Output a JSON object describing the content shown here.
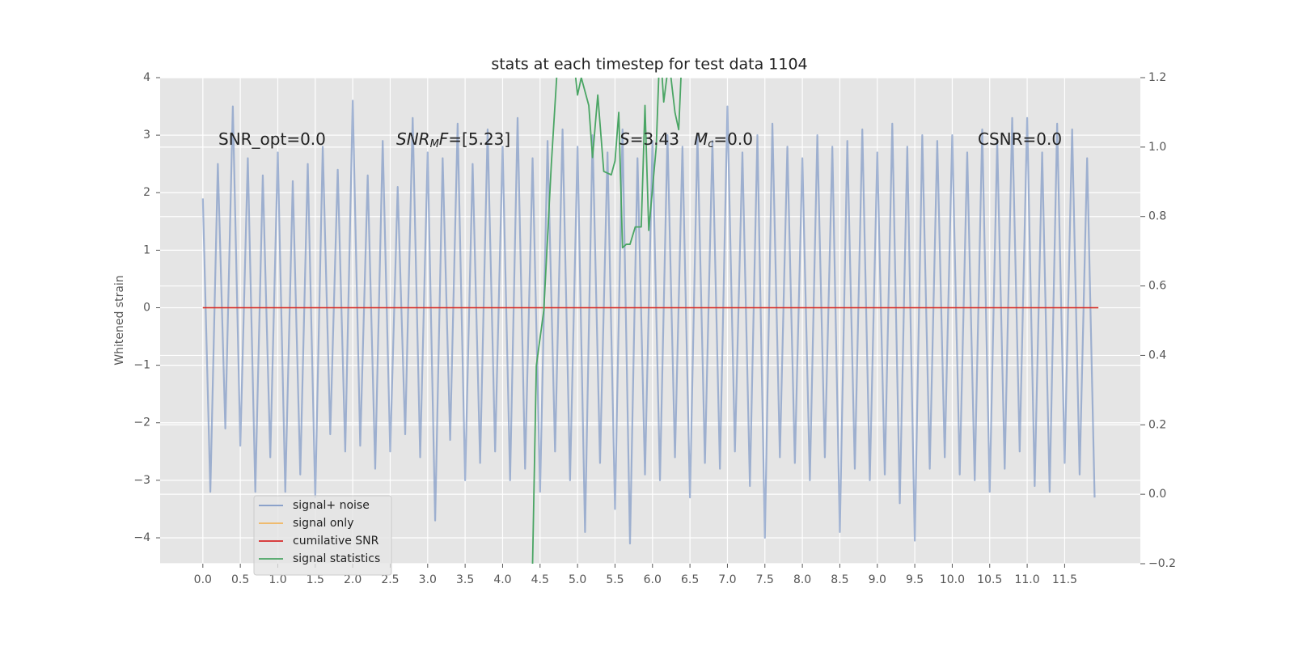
{
  "chart_data": {
    "type": "line",
    "title": "stats at each timestep for test data 1104",
    "ylabel": "Whitened strain",
    "xlim": [
      -0.57,
      12.51
    ],
    "ylim": [
      -4.45,
      4.0
    ],
    "y2lim": [
      -0.2,
      1.2
    ],
    "grid": true,
    "legend": "lower left",
    "xticks": [
      {
        "value": 0,
        "label": "0.0"
      },
      {
        "value": 0.5,
        "label": "0.5"
      },
      {
        "value": 1,
        "label": "1.0"
      },
      {
        "value": 1.5,
        "label": "1.5"
      },
      {
        "value": 2,
        "label": "2.0"
      },
      {
        "value": 2.5,
        "label": "2.5"
      },
      {
        "value": 3,
        "label": "3.0"
      },
      {
        "value": 3.5,
        "label": "3.5"
      },
      {
        "value": 4,
        "label": "4.0"
      },
      {
        "value": 4.5,
        "label": "4.5"
      },
      {
        "value": 5,
        "label": "5.0"
      },
      {
        "value": 5.5,
        "label": "5.5"
      },
      {
        "value": 6,
        "label": "6.0"
      },
      {
        "value": 6.5,
        "label": "6.5"
      },
      {
        "value": 7,
        "label": "7.0"
      },
      {
        "value": 7.5,
        "label": "7.5"
      },
      {
        "value": 8,
        "label": "8.0"
      },
      {
        "value": 8.5,
        "label": "8.5"
      },
      {
        "value": 9,
        "label": "9.0"
      },
      {
        "value": 9.5,
        "label": "9.5"
      },
      {
        "value": 10,
        "label": "10.0"
      },
      {
        "value": 10.5,
        "label": "10.5"
      },
      {
        "value": 11,
        "label": "11.0"
      },
      {
        "value": 11.5,
        "label": "11.5"
      }
    ],
    "yticks": [
      {
        "value": -4,
        "label": "−4"
      },
      {
        "value": -3,
        "label": "−3"
      },
      {
        "value": -2,
        "label": "−2"
      },
      {
        "value": -1,
        "label": "−1"
      },
      0,
      1,
      2,
      3,
      4
    ],
    "y2ticks": [
      {
        "value": -0.2,
        "label": "−0.2"
      },
      {
        "value": 0,
        "label": "0.0"
      },
      {
        "value": 0.2,
        "label": "0.2"
      },
      {
        "value": 0.4,
        "label": "0.4"
      },
      {
        "value": 0.6,
        "label": "0.6"
      },
      {
        "value": 0.8,
        "label": "0.8"
      },
      {
        "value": 1.0,
        "label": "1.0"
      },
      {
        "value": 1.2,
        "label": "1.2"
      }
    ],
    "annotations": [
      [
        {
          "text": "SNR_opt=0.0"
        }
      ],
      [
        {
          "text": "SNR",
          "italic": true
        },
        {
          "text": "M",
          "italic": true,
          "sub": true
        },
        {
          "text": "F",
          "italic": true
        },
        {
          "text": "=[5.23]"
        }
      ],
      [
        {
          "text": "S",
          "italic": true
        },
        {
          "text": "=3.43"
        }
      ],
      [
        {
          "text": "M",
          "italic": true
        },
        {
          "text": "c",
          "italic": true,
          "sub": true
        },
        {
          "text": "=0.0"
        }
      ],
      [
        {
          "text": "CSNR=0.0"
        }
      ]
    ],
    "series": [
      {
        "name": "signal+ noise",
        "color": "#7f98c6",
        "x": [
          0.0,
          0.1,
          0.2,
          0.3,
          0.4,
          0.5,
          0.6,
          0.7,
          0.8,
          0.9,
          1.0,
          1.1,
          1.2,
          1.3,
          1.4,
          1.5,
          1.6,
          1.7,
          1.8,
          1.9,
          2.0,
          2.1,
          2.2,
          2.3,
          2.4,
          2.5,
          2.6,
          2.7,
          2.8,
          2.9,
          3.0,
          3.1,
          3.2,
          3.3,
          3.4,
          3.5,
          3.6,
          3.7,
          3.8,
          3.9,
          4.0,
          4.1,
          4.2,
          4.3,
          4.4,
          4.5,
          4.6,
          4.7,
          4.8,
          4.9,
          5.0,
          5.1,
          5.2,
          5.3,
          5.4,
          5.5,
          5.6,
          5.7,
          5.8,
          5.9,
          6.0,
          6.1,
          6.2,
          6.3,
          6.4,
          6.5,
          6.6,
          6.7,
          6.8,
          6.9,
          7.0,
          7.1,
          7.2,
          7.3,
          7.4,
          7.5,
          7.6,
          7.7,
          7.8,
          7.9,
          8.0,
          8.1,
          8.2,
          8.3,
          8.4,
          8.5,
          8.6,
          8.7,
          8.8,
          8.9,
          9.0,
          9.1,
          9.2,
          9.3,
          9.4,
          9.5,
          9.6,
          9.7,
          9.8,
          9.9,
          10.0,
          10.1,
          10.2,
          10.3,
          10.4,
          10.5,
          10.6,
          10.7,
          10.8,
          10.9,
          11.0,
          11.1,
          11.2,
          11.3,
          11.4,
          11.5,
          11.6,
          11.7,
          11.8,
          11.9
        ],
        "values": [
          1.9,
          -3.2,
          2.5,
          -2.1,
          3.5,
          -2.4,
          2.6,
          -3.2,
          2.3,
          -2.6,
          2.7,
          -3.2,
          2.2,
          -2.9,
          2.5,
          -3.3,
          2.8,
          -2.2,
          2.4,
          -2.5,
          3.6,
          -2.4,
          2.3,
          -2.8,
          2.9,
          -2.5,
          2.1,
          -2.2,
          3.3,
          -2.6,
          2.7,
          -3.7,
          2.6,
          -2.3,
          3.2,
          -3.0,
          2.5,
          -2.7,
          3.1,
          -2.5,
          2.8,
          -3.0,
          3.3,
          -2.8,
          2.6,
          -3.2,
          2.9,
          -2.5,
          3.1,
          -3.0,
          2.8,
          -3.9,
          3.0,
          -2.7,
          2.7,
          -3.5,
          3.1,
          -4.1,
          2.6,
          -2.9,
          2.9,
          -3.0,
          3.0,
          -2.6,
          2.8,
          -3.3,
          3.0,
          -2.7,
          2.9,
          -2.8,
          3.5,
          -2.5,
          2.7,
          -3.1,
          3.0,
          -4.0,
          3.2,
          -2.6,
          2.8,
          -2.7,
          2.6,
          -3.0,
          3.0,
          -2.6,
          2.8,
          -3.9,
          2.9,
          -2.8,
          3.1,
          -3.0,
          2.7,
          -2.9,
          3.2,
          -3.4,
          2.8,
          -4.05,
          3.0,
          -2.8,
          2.9,
          -2.6,
          3.0,
          -2.9,
          2.7,
          -3.0,
          3.1,
          -3.2,
          2.9,
          -2.8,
          3.3,
          -2.5,
          3.3,
          -3.1,
          2.7,
          -3.2,
          3.2,
          -2.7,
          3.1,
          -2.9,
          2.6,
          -3.3
        ]
      },
      {
        "name": "signal only",
        "color": "#f0b55e",
        "x": [
          0.0,
          11.95
        ],
        "values": [
          0,
          0
        ]
      },
      {
        "name": "cumilative SNR",
        "color": "#d62728",
        "x": [
          0.0,
          11.95
        ],
        "values": [
          0,
          0
        ]
      },
      {
        "name": "signal statistics",
        "color": "#4aa564",
        "axis": "y2",
        "x": [
          4.4,
          4.45,
          4.55,
          4.65,
          4.75,
          4.85,
          4.95,
          5.0,
          5.05,
          5.15,
          5.2,
          5.27,
          5.35,
          5.45,
          5.5,
          5.55,
          5.6,
          5.65,
          5.7,
          5.77,
          5.85,
          5.9,
          5.95,
          6.05,
          6.1,
          6.15,
          6.22,
          6.3,
          6.35,
          6.4
        ],
        "values": [
          -0.2,
          0.37,
          0.53,
          0.95,
          1.3,
          1.3,
          1.25,
          1.15,
          1.2,
          1.12,
          0.97,
          1.15,
          0.93,
          0.92,
          0.96,
          1.1,
          0.71,
          0.72,
          0.72,
          0.77,
          0.77,
          1.12,
          0.76,
          1.0,
          1.3,
          1.13,
          1.25,
          1.1,
          1.05,
          1.3
        ]
      }
    ]
  }
}
